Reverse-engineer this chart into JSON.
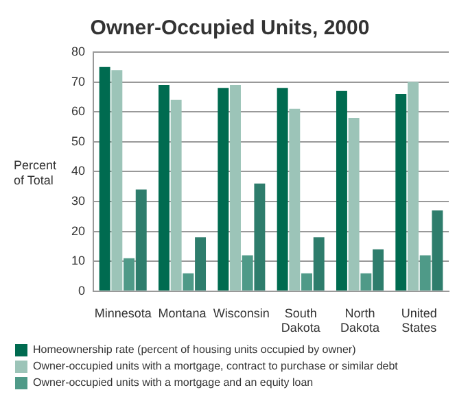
{
  "chart_data": {
    "type": "bar",
    "title": "Owner-Occupied Units, 2000",
    "ylabel": "Percent of Total",
    "categories": [
      "Minnesota",
      "Montana",
      "Wisconsin",
      "South Dakota",
      "North Dakota",
      "United States"
    ],
    "series": [
      {
        "name": "Homeownership rate (percent of housing units occupied by owner)",
        "color": "#006b50",
        "values": [
          75,
          69,
          68,
          68,
          67,
          66
        ]
      },
      {
        "name": "Owner-occupied units with a mortgage, contract to purchase or similar debt",
        "color": "#9cc4b8",
        "values": [
          74,
          64,
          69,
          61,
          58,
          70
        ]
      },
      {
        "name": "Owner-occupied units with a mortgage and an equity loan",
        "color": "#4f9a88",
        "values": [
          11,
          6,
          12,
          6,
          6,
          12
        ]
      },
      {
        "color": "#2e7d6c",
        "values": [
          34,
          18,
          36,
          18,
          14,
          27
        ]
      }
    ],
    "ylim": [
      0,
      80
    ],
    "yticks": [
      0,
      10,
      20,
      30,
      40,
      50,
      60,
      70,
      80
    ],
    "grid": "y",
    "legend": "bottom"
  }
}
